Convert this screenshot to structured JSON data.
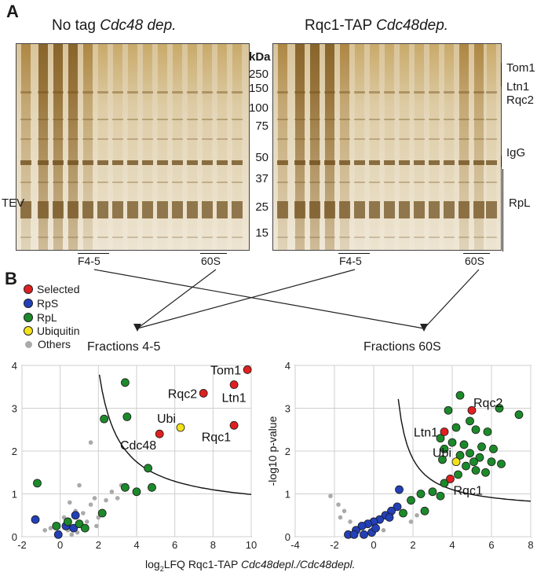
{
  "panel_a": {
    "letter": "A",
    "gel_left": {
      "title_prefix": "No tag ",
      "title_italic": "Cdc48 dep.",
      "side_label": "TEV",
      "fraction_a": "F4-5",
      "fraction_b": "60S"
    },
    "gel_right": {
      "title_prefix": "Rqc1-TAP ",
      "title_italic": "Cdc48dep.",
      "fraction_a": "F4-5",
      "fraction_b": "60S"
    },
    "mw_header": "kDa",
    "mw_markers": [
      "250",
      "150",
      "100",
      "75",
      "50",
      "37",
      "25",
      "15"
    ],
    "band_labels": {
      "tom1": "Tom1",
      "ltn1": "Ltn1",
      "rqc2": "Rqc2",
      "igg": "IgG",
      "rpl": "RpL"
    }
  },
  "panel_b": {
    "letter": "B",
    "legend": [
      {
        "label": "Selected",
        "color": "#e02020"
      },
      {
        "label": "RpS",
        "color": "#2340b8"
      },
      {
        "label": "RpL",
        "color": "#1c8a2a"
      },
      {
        "label": "Ubiquitin",
        "color": "#f2e21a"
      },
      {
        "label": "Others",
        "color": "#aaaaaa"
      }
    ],
    "xlabel_prefix": "log",
    "xlabel_sub": "2",
    "xlabel_mid": "LFQ Rqc1-TAP ",
    "xlabel_italic": "Cdc48depl./Cdc48depl.",
    "ylabel": "-log10 p-value"
  },
  "chart_data": [
    {
      "type": "scatter",
      "title": "Fractions 4-5",
      "xlim": [
        -2,
        10
      ],
      "ylim": [
        0,
        4
      ],
      "xticks": [
        "-2",
        "0",
        "2",
        "4",
        "6",
        "8",
        "10"
      ],
      "yticks": [
        "0",
        "1",
        "2",
        "3",
        "4"
      ],
      "curve": {
        "a": 3.5,
        "b": 0.95
      },
      "series": [
        {
          "name": "Selected",
          "color": "#e02020",
          "points": [
            [
              9.8,
              3.9
            ],
            [
              9.1,
              3.55
            ],
            [
              7.5,
              3.35
            ],
            [
              5.2,
              2.4
            ],
            [
              9.1,
              2.6
            ]
          ]
        },
        {
          "name": "Ubiquitin",
          "color": "#f2e21a",
          "points": [
            [
              6.3,
              2.55
            ]
          ]
        },
        {
          "name": "RpL",
          "color": "#1c8a2a",
          "points": [
            [
              3.4,
              3.6
            ],
            [
              3.5,
              2.8
            ],
            [
              2.3,
              2.75
            ],
            [
              4.6,
              1.6
            ],
            [
              3.4,
              1.15
            ],
            [
              4.0,
              1.05
            ],
            [
              4.8,
              1.15
            ],
            [
              2.2,
              0.55
            ],
            [
              1.0,
              0.3
            ],
            [
              1.3,
              0.2
            ],
            [
              -0.2,
              0.25
            ],
            [
              -1.2,
              1.25
            ],
            [
              0.4,
              0.35
            ]
          ]
        },
        {
          "name": "RpS",
          "color": "#2340b8",
          "points": [
            [
              -1.3,
              0.4
            ],
            [
              -0.1,
              0.05
            ],
            [
              0.8,
              0.5
            ],
            [
              0.7,
              0.2
            ],
            [
              0.3,
              0.25
            ]
          ]
        },
        {
          "name": "Others",
          "color": "#aaaaaa",
          "points": [
            [
              1.6,
              2.2
            ],
            [
              1.0,
              1.2
            ],
            [
              0.5,
              0.8
            ],
            [
              0.8,
              0.6
            ],
            [
              1.2,
              0.55
            ],
            [
              1.6,
              0.75
            ],
            [
              1.8,
              0.9
            ],
            [
              2.4,
              0.85
            ],
            [
              3.0,
              0.9
            ],
            [
              3.2,
              1.2
            ],
            [
              0.2,
              0.45
            ],
            [
              0.4,
              0.15
            ],
            [
              0.9,
              0.1
            ],
            [
              1.4,
              0.35
            ],
            [
              2.0,
              0.45
            ],
            [
              -0.5,
              0.2
            ],
            [
              -0.8,
              0.15
            ],
            [
              1.9,
              0.25
            ],
            [
              2.7,
              1.05
            ],
            [
              0.6,
              0.05
            ]
          ]
        }
      ],
      "annotations": [
        {
          "text": "Tom1",
          "x": 9.8,
          "y": 3.9,
          "pos": "left"
        },
        {
          "text": "Rqc2",
          "x": 7.5,
          "y": 3.35,
          "pos": "left"
        },
        {
          "text": "Ltn1",
          "x": 9.1,
          "y": 3.55,
          "pos": "below"
        },
        {
          "text": "Ubi",
          "x": 6.3,
          "y": 2.55,
          "pos": "upleft"
        },
        {
          "text": "Cdc48",
          "x": 5.2,
          "y": 2.4,
          "pos": "belowleft"
        },
        {
          "text": "Rqc1",
          "x": 9.1,
          "y": 2.6,
          "pos": "belowleft"
        }
      ]
    },
    {
      "type": "scatter",
      "title": "Fractions 60S",
      "xlim": [
        -4,
        8
      ],
      "ylim": [
        0,
        4
      ],
      "xticks": [
        "-4",
        "-2",
        "0",
        "2",
        "4",
        "6",
        "8"
      ],
      "yticks": [
        "0",
        "1",
        "2",
        "3",
        "4"
      ],
      "ylabel": "-log10 p-value",
      "curve": {
        "a": 1.7,
        "b": 0.6
      },
      "series": [
        {
          "name": "Selected",
          "color": "#e02020",
          "points": [
            [
              5.0,
              2.95
            ],
            [
              3.6,
              2.45
            ],
            [
              3.9,
              1.35
            ]
          ]
        },
        {
          "name": "Ubiquitin",
          "color": "#f2e21a",
          "points": [
            [
              4.2,
              1.75
            ]
          ]
        },
        {
          "name": "RpL",
          "color": "#1c8a2a",
          "points": [
            [
              4.4,
              3.3
            ],
            [
              6.4,
              3.0
            ],
            [
              7.4,
              2.85
            ],
            [
              3.8,
              2.95
            ],
            [
              4.9,
              2.7
            ],
            [
              4.2,
              2.55
            ],
            [
              5.2,
              2.5
            ],
            [
              5.8,
              2.45
            ],
            [
              3.4,
              2.3
            ],
            [
              4.0,
              2.2
            ],
            [
              4.6,
              2.15
            ],
            [
              5.5,
              2.1
            ],
            [
              6.1,
              2.05
            ],
            [
              3.6,
              2.05
            ],
            [
              4.9,
              1.95
            ],
            [
              4.4,
              1.9
            ],
            [
              5.4,
              1.85
            ],
            [
              3.5,
              1.8
            ],
            [
              6.0,
              1.75
            ],
            [
              4.7,
              1.65
            ],
            [
              5.2,
              1.55
            ],
            [
              5.7,
              1.5
            ],
            [
              4.3,
              1.45
            ],
            [
              3.6,
              1.25
            ],
            [
              3.0,
              1.05
            ],
            [
              2.4,
              1.0
            ],
            [
              1.9,
              0.85
            ],
            [
              1.5,
              0.55
            ],
            [
              2.6,
              0.6
            ],
            [
              3.4,
              0.95
            ],
            [
              5.1,
              1.75
            ],
            [
              6.5,
              1.7
            ]
          ]
        },
        {
          "name": "RpS",
          "color": "#2340b8",
          "points": [
            [
              1.3,
              1.1
            ],
            [
              1.2,
              0.7
            ],
            [
              0.9,
              0.6
            ],
            [
              0.6,
              0.5
            ],
            [
              0.3,
              0.4
            ],
            [
              0.0,
              0.35
            ],
            [
              -0.3,
              0.3
            ],
            [
              -0.6,
              0.25
            ],
            [
              -0.9,
              0.15
            ],
            [
              -1.3,
              0.05
            ],
            [
              -0.5,
              0.05
            ],
            [
              -0.1,
              0.1
            ],
            [
              0.8,
              0.45
            ],
            [
              0.1,
              0.2
            ],
            [
              -1.0,
              0.05
            ]
          ]
        },
        {
          "name": "Others",
          "color": "#aaaaaa",
          "points": [
            [
              -2.2,
              0.95
            ],
            [
              -1.8,
              0.75
            ],
            [
              -1.5,
              0.6
            ],
            [
              -1.7,
              0.45
            ],
            [
              -1.2,
              0.35
            ],
            [
              1.9,
              0.35
            ],
            [
              2.2,
              0.5
            ],
            [
              0.5,
              0.15
            ]
          ]
        }
      ],
      "annotations": [
        {
          "text": "Rqc2",
          "x": 5.0,
          "y": 2.95,
          "pos": "upright"
        },
        {
          "text": "Ltn1",
          "x": 3.6,
          "y": 2.45,
          "pos": "left"
        },
        {
          "text": "Ubi",
          "x": 4.2,
          "y": 1.75,
          "pos": "upleft"
        },
        {
          "text": "Rqc1",
          "x": 3.9,
          "y": 1.35,
          "pos": "belowright"
        }
      ]
    }
  ]
}
